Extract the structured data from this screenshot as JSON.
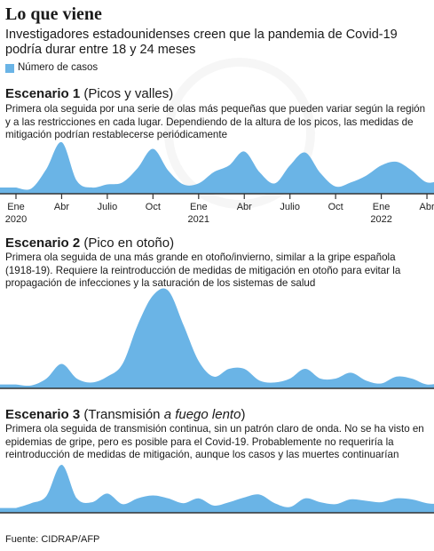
{
  "title": "Lo que viene",
  "subtitle": "Investigadores estadounidenses creen que la pandemia de Covid-19 podría durar entre 18 y 24 meses",
  "legend": {
    "label": "Número de casos",
    "color": "#6ab4e6"
  },
  "scenarios": [
    {
      "name": "Escenario 1",
      "tagline_pre": "(Picos y valles)",
      "tagline_em": "",
      "tagline_post": "",
      "description": "Primera ola seguida por una serie de olas más pequeñas que pueden variar según la región y a las restricciones en cada lugar. Dependiendo de la altura de los picos, las medidas de mitigación podrían restablecerse periódicamente"
    },
    {
      "name": "Escenario 2",
      "tagline_pre": "(Pico en otoño)",
      "tagline_em": "",
      "tagline_post": "",
      "description": "Primera ola seguida de una más grande en otoño/invierno, similar a la gripe española (1918-19). Requiere la reintroducción de medidas de mitigación en otoño para evitar la propagación de infecciones y la saturación de los sistemas de salud"
    },
    {
      "name": "Escenario 3",
      "tagline_pre": "(Transmisión ",
      "tagline_em": "a fuego lento",
      "tagline_post": ")",
      "description": "Primera ola seguida de transmisión continua, sin un patrón claro de onda. No se ha visto en epidemias de gripe, pero es posible para el Covid-19. Probablemente no requeriría la reintroducción de medidas de mitigación, aunque los casos y las muertes continuarían"
    }
  ],
  "axis": {
    "ticks": [
      {
        "month": 0,
        "label": "Ene",
        "year": "2020"
      },
      {
        "month": 3,
        "label": "Abr",
        "year": ""
      },
      {
        "month": 6,
        "label": "Julio",
        "year": ""
      },
      {
        "month": 9,
        "label": "Oct",
        "year": ""
      },
      {
        "month": 12,
        "label": "Ene",
        "year": "2021"
      },
      {
        "month": 15,
        "label": "Abr",
        "year": ""
      },
      {
        "month": 18,
        "label": "Julio",
        "year": ""
      },
      {
        "month": 21,
        "label": "Oct",
        "year": ""
      },
      {
        "month": 24,
        "label": "Ene",
        "year": "2022"
      },
      {
        "month": 27,
        "label": "Abr",
        "year": ""
      }
    ]
  },
  "source": "Fuente: CIDRAP/AFP",
  "chart_data": [
    {
      "type": "area",
      "title": "Escenario 1",
      "series_name": "Número de casos",
      "x_unit": "months since Jan 2020",
      "ylim": [
        0,
        1
      ],
      "x": [
        0,
        1,
        2,
        3,
        4,
        5,
        6,
        7,
        8,
        9,
        10,
        11,
        12,
        13,
        14,
        15,
        16,
        17,
        18,
        19,
        20,
        21,
        22,
        23,
        24,
        25,
        26,
        27,
        28
      ],
      "values": [
        0.12,
        0.1,
        0.48,
        1.0,
        0.25,
        0.12,
        0.18,
        0.22,
        0.5,
        0.87,
        0.45,
        0.18,
        0.2,
        0.42,
        0.55,
        0.82,
        0.42,
        0.2,
        0.55,
        0.8,
        0.4,
        0.14,
        0.22,
        0.35,
        0.55,
        0.62,
        0.45,
        0.22,
        0.28
      ]
    },
    {
      "type": "area",
      "title": "Escenario 2",
      "series_name": "Número de casos",
      "x_unit": "months since Jan 2020",
      "ylim": [
        0,
        1
      ],
      "x": [
        0,
        1,
        2,
        3,
        4,
        5,
        6,
        7,
        8,
        9,
        10,
        11,
        12,
        13,
        14,
        15,
        16,
        17,
        18,
        19,
        20,
        21,
        22,
        23,
        24,
        25,
        26,
        27,
        28
      ],
      "values": [
        0.04,
        0.03,
        0.1,
        0.25,
        0.1,
        0.06,
        0.12,
        0.25,
        0.65,
        0.95,
        1.0,
        0.65,
        0.28,
        0.12,
        0.2,
        0.2,
        0.08,
        0.06,
        0.1,
        0.2,
        0.1,
        0.1,
        0.16,
        0.08,
        0.05,
        0.12,
        0.1,
        0.04,
        0.06
      ]
    },
    {
      "type": "area",
      "title": "Escenario 3",
      "series_name": "Número de casos",
      "x_unit": "months since Jan 2020",
      "ylim": [
        0,
        1
      ],
      "x": [
        0,
        1,
        2,
        3,
        4,
        5,
        6,
        7,
        8,
        9,
        10,
        11,
        12,
        13,
        14,
        15,
        16,
        17,
        18,
        19,
        20,
        21,
        22,
        23,
        24,
        25,
        26,
        27,
        28
      ],
      "values": [
        0.1,
        0.2,
        0.35,
        1.0,
        0.3,
        0.22,
        0.4,
        0.18,
        0.3,
        0.36,
        0.3,
        0.2,
        0.3,
        0.15,
        0.22,
        0.32,
        0.38,
        0.2,
        0.12,
        0.3,
        0.22,
        0.18,
        0.28,
        0.25,
        0.22,
        0.3,
        0.28,
        0.2,
        0.18
      ]
    }
  ]
}
